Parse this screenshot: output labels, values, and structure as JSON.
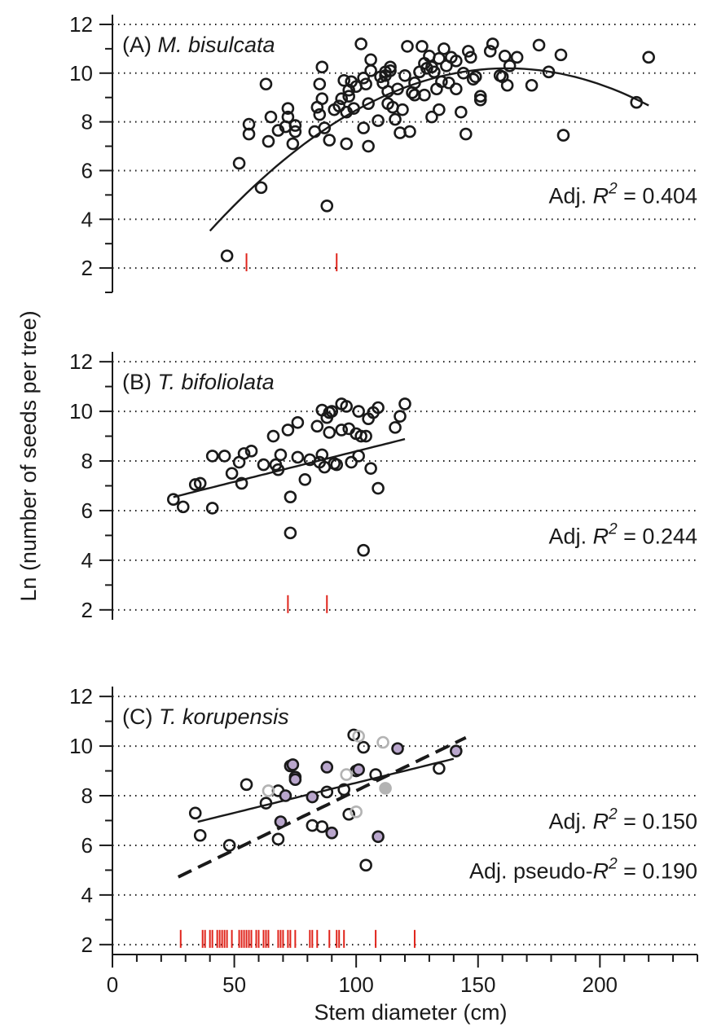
{
  "figure": {
    "ylabel": "Ln (number of seeds per tree)",
    "xlabel": "Stem diameter (cm)"
  },
  "colors": {
    "axis": "#1a1a1a",
    "marker_edge": "#1a1a1a",
    "rug": "#e0241b",
    "filled_marker": "#b9a6cc",
    "grey_marker": "#b3b3b3"
  },
  "chart_data": [
    {
      "type": "scatter",
      "panel_label": "(A) ",
      "species": "M. bisulcata",
      "stat_label": "Adj. ",
      "stat_symbol": "R",
      "stat_exponent": "2",
      "stat_value": " = 0.404",
      "xlim": [
        0,
        240
      ],
      "ylim": [
        1,
        12.3
      ],
      "yticks": [
        2,
        4,
        6,
        8,
        10,
        12
      ],
      "grid": "horizontal-dotted",
      "fit": {
        "type": "quadratic",
        "x_range": [
          40,
          220
        ],
        "coefficients": [
          -1.58,
          0.1456,
          -0.00045
        ]
      },
      "rug_x": [
        55,
        92
      ],
      "series": [
        {
          "name": "",
          "style": "open",
          "points": [
            [
              47,
              2.5
            ],
            [
              52,
              6.3
            ],
            [
              56,
              7.5
            ],
            [
              56,
              7.9
            ],
            [
              61,
              5.3
            ],
            [
              63,
              9.55
            ],
            [
              64,
              7.2
            ],
            [
              65,
              8.2
            ],
            [
              68,
              7.65
            ],
            [
              71,
              7.8
            ],
            [
              72,
              8.55
            ],
            [
              72,
              8.2
            ],
            [
              74,
              7.1
            ],
            [
              75,
              7.6
            ],
            [
              75,
              7.85
            ],
            [
              83,
              7.6
            ],
            [
              84,
              8.6
            ],
            [
              85,
              9.55
            ],
            [
              85,
              8.3
            ],
            [
              86,
              8.95
            ],
            [
              86,
              10.25
            ],
            [
              87,
              7.75
            ],
            [
              88,
              4.55
            ],
            [
              89,
              7.25
            ],
            [
              91,
              8.5
            ],
            [
              93,
              8.65
            ],
            [
              94,
              8.95
            ],
            [
              95,
              9.7
            ],
            [
              96,
              7.1
            ],
            [
              96,
              8.4
            ],
            [
              97,
              9.3
            ],
            [
              97,
              9.05
            ],
            [
              98,
              9.65
            ],
            [
              99,
              8.55
            ],
            [
              100,
              9.45
            ],
            [
              102,
              11.2
            ],
            [
              103,
              7.75
            ],
            [
              103,
              9.8
            ],
            [
              104,
              9.55
            ],
            [
              105,
              8.75
            ],
            [
              105,
              7.0
            ],
            [
              106,
              10.55
            ],
            [
              106,
              10.1
            ],
            [
              109,
              8.05
            ],
            [
              110,
              9.85
            ],
            [
              111,
              9.6
            ],
            [
              112,
              10.05
            ],
            [
              112,
              9.9
            ],
            [
              113,
              8.75
            ],
            [
              113,
              9.25
            ],
            [
              114,
              10.25
            ],
            [
              114,
              10.1
            ],
            [
              115,
              8.6
            ],
            [
              116,
              8.1
            ],
            [
              117,
              9.35
            ],
            [
              118,
              7.55
            ],
            [
              119,
              8.5
            ],
            [
              120,
              9.9
            ],
            [
              121,
              11.1
            ],
            [
              122,
              7.6
            ],
            [
              123,
              9.2
            ],
            [
              124,
              9.6
            ],
            [
              124,
              9.1
            ],
            [
              126,
              10.05
            ],
            [
              127,
              11.1
            ],
            [
              128,
              10.4
            ],
            [
              128,
              9.1
            ],
            [
              129,
              10.2
            ],
            [
              130,
              10.7
            ],
            [
              131,
              10.25
            ],
            [
              131,
              8.2
            ],
            [
              132,
              10.05
            ],
            [
              133,
              9.35
            ],
            [
              134,
              10.6
            ],
            [
              134,
              8.5
            ],
            [
              135,
              9.65
            ],
            [
              136,
              11.0
            ],
            [
              137,
              10.3
            ],
            [
              138,
              9.6
            ],
            [
              139,
              10.65
            ],
            [
              141,
              9.35
            ],
            [
              141,
              10.5
            ],
            [
              143,
              8.4
            ],
            [
              144,
              10.0
            ],
            [
              145,
              7.5
            ],
            [
              146,
              10.9
            ],
            [
              147,
              10.65
            ],
            [
              148,
              9.75
            ],
            [
              149,
              9.85
            ],
            [
              151,
              8.9
            ],
            [
              151,
              9.05
            ],
            [
              155,
              10.9
            ],
            [
              156,
              11.2
            ],
            [
              159,
              9.9
            ],
            [
              160,
              9.85
            ],
            [
              161,
              10.7
            ],
            [
              162,
              9.5
            ],
            [
              163,
              10.3
            ],
            [
              166,
              10.65
            ],
            [
              172,
              9.5
            ],
            [
              175,
              11.15
            ],
            [
              179,
              10.05
            ],
            [
              184,
              10.75
            ],
            [
              185,
              7.45
            ],
            [
              215,
              8.8
            ],
            [
              220,
              10.65
            ]
          ]
        }
      ]
    },
    {
      "type": "scatter",
      "panel_label": "(B) ",
      "species": "T. bifoliolata",
      "stat_label": "Adj. ",
      "stat_symbol": "R",
      "stat_exponent": "2",
      "stat_value": " = 0.244",
      "xlim": [
        0,
        240
      ],
      "ylim": [
        1.6,
        12.3
      ],
      "yticks": [
        2,
        4,
        6,
        8,
        10,
        12
      ],
      "grid": "horizontal-dotted",
      "fit": {
        "type": "linear",
        "x_range": [
          25,
          120
        ],
        "coefficients": [
          5.93,
          0.0246
        ]
      },
      "rug_x": [
        72,
        88
      ],
      "series": [
        {
          "name": "",
          "style": "open",
          "points": [
            [
              25,
              6.45
            ],
            [
              29,
              6.15
            ],
            [
              34,
              7.05
            ],
            [
              36,
              7.1
            ],
            [
              41,
              6.1
            ],
            [
              41,
              8.2
            ],
            [
              46,
              8.2
            ],
            [
              49,
              7.5
            ],
            [
              52,
              7.95
            ],
            [
              53,
              7.1
            ],
            [
              54,
              8.3
            ],
            [
              57,
              8.4
            ],
            [
              62,
              7.85
            ],
            [
              66,
              9.0
            ],
            [
              67,
              7.85
            ],
            [
              68,
              7.65
            ],
            [
              69,
              8.25
            ],
            [
              72,
              9.25
            ],
            [
              73,
              6.55
            ],
            [
              73,
              5.1
            ],
            [
              76,
              9.55
            ],
            [
              76,
              8.15
            ],
            [
              79,
              7.25
            ],
            [
              81,
              8.05
            ],
            [
              84,
              9.4
            ],
            [
              85,
              7.95
            ],
            [
              86,
              10.05
            ],
            [
              86,
              8.25
            ],
            [
              87,
              7.75
            ],
            [
              88,
              9.75
            ],
            [
              89,
              9.95
            ],
            [
              89,
              9.15
            ],
            [
              90,
              10.0
            ],
            [
              91,
              7.9
            ],
            [
              92,
              7.85
            ],
            [
              94,
              10.3
            ],
            [
              94,
              9.25
            ],
            [
              96,
              10.2
            ],
            [
              97,
              9.3
            ],
            [
              98,
              7.95
            ],
            [
              100,
              9.1
            ],
            [
              101,
              10.0
            ],
            [
              101,
              8.2
            ],
            [
              102,
              9.0
            ],
            [
              103,
              4.4
            ],
            [
              104,
              9.0
            ],
            [
              105,
              9.7
            ],
            [
              106,
              7.7
            ],
            [
              107,
              9.95
            ],
            [
              109,
              6.9
            ],
            [
              109,
              10.15
            ],
            [
              116,
              9.35
            ],
            [
              118,
              9.8
            ],
            [
              120,
              10.3
            ]
          ]
        }
      ]
    },
    {
      "type": "scatter",
      "panel_label": "(C) ",
      "species": "T. korupensis",
      "stat_label": "Adj. ",
      "stat_symbol": "R",
      "stat_exponent": "2",
      "stat_value": " = 0.150",
      "stat2_label": "Adj. pseudo-",
      "stat2_symbol": "R",
      "stat2_exponent": "2",
      "stat2_value": " = 0.190",
      "xlim": [
        0,
        240
      ],
      "ylim": [
        1.6,
        12.3
      ],
      "yticks": [
        2,
        4,
        6,
        8,
        10,
        12
      ],
      "xticks": [
        0,
        50,
        100,
        150,
        200
      ],
      "grid": "horizontal-dotted",
      "fit": {
        "type": "linear",
        "x_range": [
          35,
          140
        ],
        "coefficients": [
          6.1,
          0.0242
        ]
      },
      "fit2": {
        "type": "linear-dashed",
        "x_range": [
          27,
          145
        ],
        "coefficients": [
          3.44,
          0.0476
        ]
      },
      "rug_x": [
        28,
        37,
        38,
        40,
        41,
        43,
        44,
        45,
        46,
        47,
        49,
        52,
        53,
        54,
        55,
        56,
        57,
        59,
        60,
        62,
        63,
        64,
        68,
        69,
        70,
        72,
        73,
        75,
        81,
        82,
        84,
        89,
        92,
        93,
        95,
        108,
        124
      ],
      "series": [
        {
          "name": "",
          "style": "open",
          "points": [
            [
              34,
              7.3
            ],
            [
              36,
              6.4
            ],
            [
              48,
              6.0
            ],
            [
              55,
              8.45
            ],
            [
              63,
              7.7
            ],
            [
              68,
              8.2
            ],
            [
              68,
              6.25
            ],
            [
              82,
              6.8
            ],
            [
              86,
              6.75
            ],
            [
              88,
              8.15
            ],
            [
              95,
              8.25
            ],
            [
              97,
              7.25
            ],
            [
              99,
              10.45
            ],
            [
              100,
              9.0
            ],
            [
              103,
              9.95
            ],
            [
              104,
              5.2
            ],
            [
              108,
              8.85
            ],
            [
              134,
              9.1
            ]
          ]
        },
        {
          "name": "",
          "style": "filled",
          "points": [
            [
              69,
              6.95
            ],
            [
              71,
              8.0
            ],
            [
              73,
              9.2
            ],
            [
              74,
              9.25
            ],
            [
              75,
              8.75
            ],
            [
              75,
              8.65
            ],
            [
              82,
              7.95
            ],
            [
              88,
              9.15
            ],
            [
              90,
              6.5
            ],
            [
              101,
              9.05
            ],
            [
              109,
              6.35
            ],
            [
              117,
              9.9
            ],
            [
              141,
              9.8
            ]
          ]
        },
        {
          "name": "",
          "style": "grey-open",
          "points": [
            [
              64,
              8.2
            ],
            [
              96,
              8.85
            ],
            [
              100,
              7.35
            ],
            [
              101,
              10.4
            ],
            [
              111,
              10.15
            ]
          ]
        },
        {
          "name": "",
          "style": "grey-filled",
          "points": [
            [
              112,
              8.3
            ]
          ]
        }
      ]
    }
  ]
}
